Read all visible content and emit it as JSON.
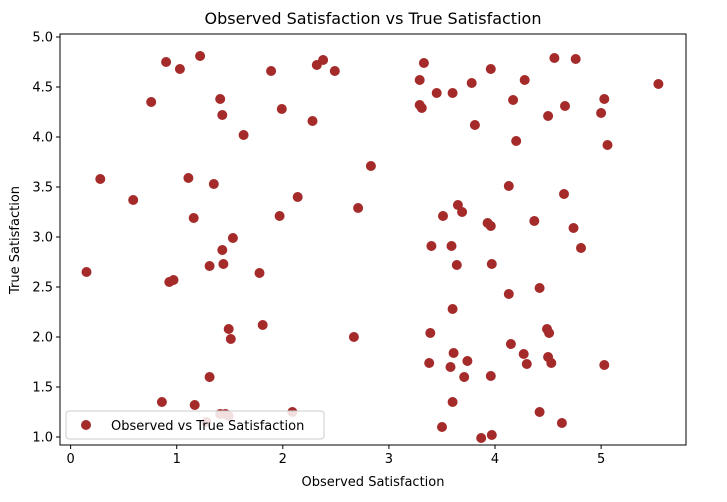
{
  "chart_data": {
    "type": "scatter",
    "title": "Observed Satisfaction vs True Satisfaction",
    "xlabel": "Observed Satisfaction",
    "ylabel": "True Satisfaction",
    "xlim": [
      -0.1,
      5.8
    ],
    "ylim": [
      0.92,
      5.03
    ],
    "xticks": [
      0,
      1,
      2,
      3,
      4,
      5
    ],
    "xtick_labels": [
      "0",
      "1",
      "2",
      "3",
      "4",
      "5"
    ],
    "yticks": [
      1.0,
      1.5,
      2.0,
      2.5,
      3.0,
      3.5,
      4.0,
      4.5,
      5.0
    ],
    "ytick_labels": [
      "1.0",
      "1.5",
      "2.0",
      "2.5",
      "3.0",
      "3.5",
      "4.0",
      "4.5",
      "5.0"
    ],
    "grid": false,
    "legend": {
      "position": "lower-left",
      "entries": [
        "Observed vs True Satisfaction"
      ]
    },
    "series": [
      {
        "name": "Observed vs True Satisfaction",
        "color": "#a52a2a",
        "points": [
          [
            0.9,
            4.75
          ],
          [
            1.03,
            4.68
          ],
          [
            1.22,
            4.81
          ],
          [
            0.76,
            4.35
          ],
          [
            1.41,
            4.38
          ],
          [
            1.43,
            4.22
          ],
          [
            1.63,
            4.02
          ],
          [
            1.89,
            4.66
          ],
          [
            1.99,
            4.28
          ],
          [
            2.32,
            4.72
          ],
          [
            2.38,
            4.77
          ],
          [
            2.49,
            4.66
          ],
          [
            2.28,
            4.16
          ],
          [
            0.28,
            3.58
          ],
          [
            0.59,
            3.37
          ],
          [
            1.11,
            3.59
          ],
          [
            1.35,
            3.53
          ],
          [
            2.14,
            3.4
          ],
          [
            2.83,
            3.71
          ],
          [
            1.16,
            3.19
          ],
          [
            1.53,
            2.99
          ],
          [
            1.97,
            3.21
          ],
          [
            2.71,
            3.29
          ],
          [
            1.43,
            2.87
          ],
          [
            1.31,
            2.71
          ],
          [
            1.44,
            2.73
          ],
          [
            0.15,
            2.65
          ],
          [
            0.93,
            2.55
          ],
          [
            0.97,
            2.57
          ],
          [
            1.78,
            2.64
          ],
          [
            1.49,
            2.08
          ],
          [
            1.51,
            1.98
          ],
          [
            1.81,
            2.12
          ],
          [
            2.67,
            2.0
          ],
          [
            1.31,
            1.6
          ],
          [
            0.86,
            1.35
          ],
          [
            1.17,
            1.32
          ],
          [
            1.41,
            1.23
          ],
          [
            1.46,
            1.23
          ],
          [
            1.49,
            1.21
          ],
          [
            1.28,
            1.15
          ],
          [
            2.09,
            1.25
          ],
          [
            3.29,
            4.57
          ],
          [
            3.33,
            4.74
          ],
          [
            3.45,
            4.44
          ],
          [
            3.6,
            4.44
          ],
          [
            3.29,
            4.32
          ],
          [
            3.31,
            4.29
          ],
          [
            3.78,
            4.54
          ],
          [
            3.96,
            4.68
          ],
          [
            4.28,
            4.57
          ],
          [
            4.56,
            4.79
          ],
          [
            4.76,
            4.78
          ],
          [
            5.54,
            4.53
          ],
          [
            4.17,
            4.37
          ],
          [
            4.5,
            4.21
          ],
          [
            4.66,
            4.31
          ],
          [
            5.0,
            4.24
          ],
          [
            5.03,
            4.38
          ],
          [
            3.81,
            4.12
          ],
          [
            4.2,
            3.96
          ],
          [
            5.06,
            3.92
          ],
          [
            4.13,
            3.51
          ],
          [
            4.65,
            3.43
          ],
          [
            3.65,
            3.32
          ],
          [
            3.69,
            3.25
          ],
          [
            3.51,
            3.21
          ],
          [
            3.93,
            3.14
          ],
          [
            3.96,
            3.11
          ],
          [
            4.37,
            3.16
          ],
          [
            4.74,
            3.09
          ],
          [
            3.4,
            2.91
          ],
          [
            3.59,
            2.91
          ],
          [
            4.81,
            2.89
          ],
          [
            3.64,
            2.72
          ],
          [
            3.97,
            2.73
          ],
          [
            4.42,
            2.49
          ],
          [
            4.13,
            2.43
          ],
          [
            3.6,
            2.28
          ],
          [
            3.39,
            2.04
          ],
          [
            4.49,
            2.08
          ],
          [
            4.51,
            2.04
          ],
          [
            4.15,
            1.93
          ],
          [
            3.61,
            1.84
          ],
          [
            4.27,
            1.83
          ],
          [
            3.38,
            1.74
          ],
          [
            3.58,
            1.7
          ],
          [
            3.74,
            1.76
          ],
          [
            4.5,
            1.8
          ],
          [
            4.53,
            1.74
          ],
          [
            4.3,
            1.73
          ],
          [
            5.03,
            1.72
          ],
          [
            3.71,
            1.6
          ],
          [
            3.96,
            1.61
          ],
          [
            3.6,
            1.35
          ],
          [
            4.42,
            1.25
          ],
          [
            3.5,
            1.1
          ],
          [
            4.63,
            1.14
          ],
          [
            3.87,
            0.99
          ],
          [
            3.97,
            1.02
          ]
        ]
      }
    ]
  }
}
